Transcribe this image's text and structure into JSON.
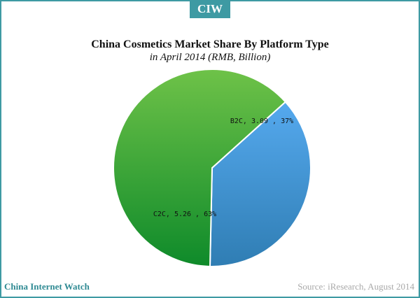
{
  "logo": "CIW",
  "footer": {
    "brand": "China Internet Watch",
    "source": "Source: iResearch, August 2014"
  },
  "chart_data": {
    "type": "pie",
    "title": "China Cosmetics Market Share By Platform Type",
    "subtitle": "in April 2014 (RMB, Billion)",
    "slices": [
      {
        "category": "B2C",
        "value": 3.09,
        "percent": 37,
        "label": "B2C, 3.09 , 37%",
        "color_top": "#55a9ee",
        "color_bottom": "#2f7db3"
      },
      {
        "category": "C2C",
        "value": 5.26,
        "percent": 63,
        "label": "C2C, 5.26 , 63%",
        "color_top": "#6ec248",
        "color_bottom": "#0e8a2a"
      }
    ],
    "legend": "none"
  }
}
